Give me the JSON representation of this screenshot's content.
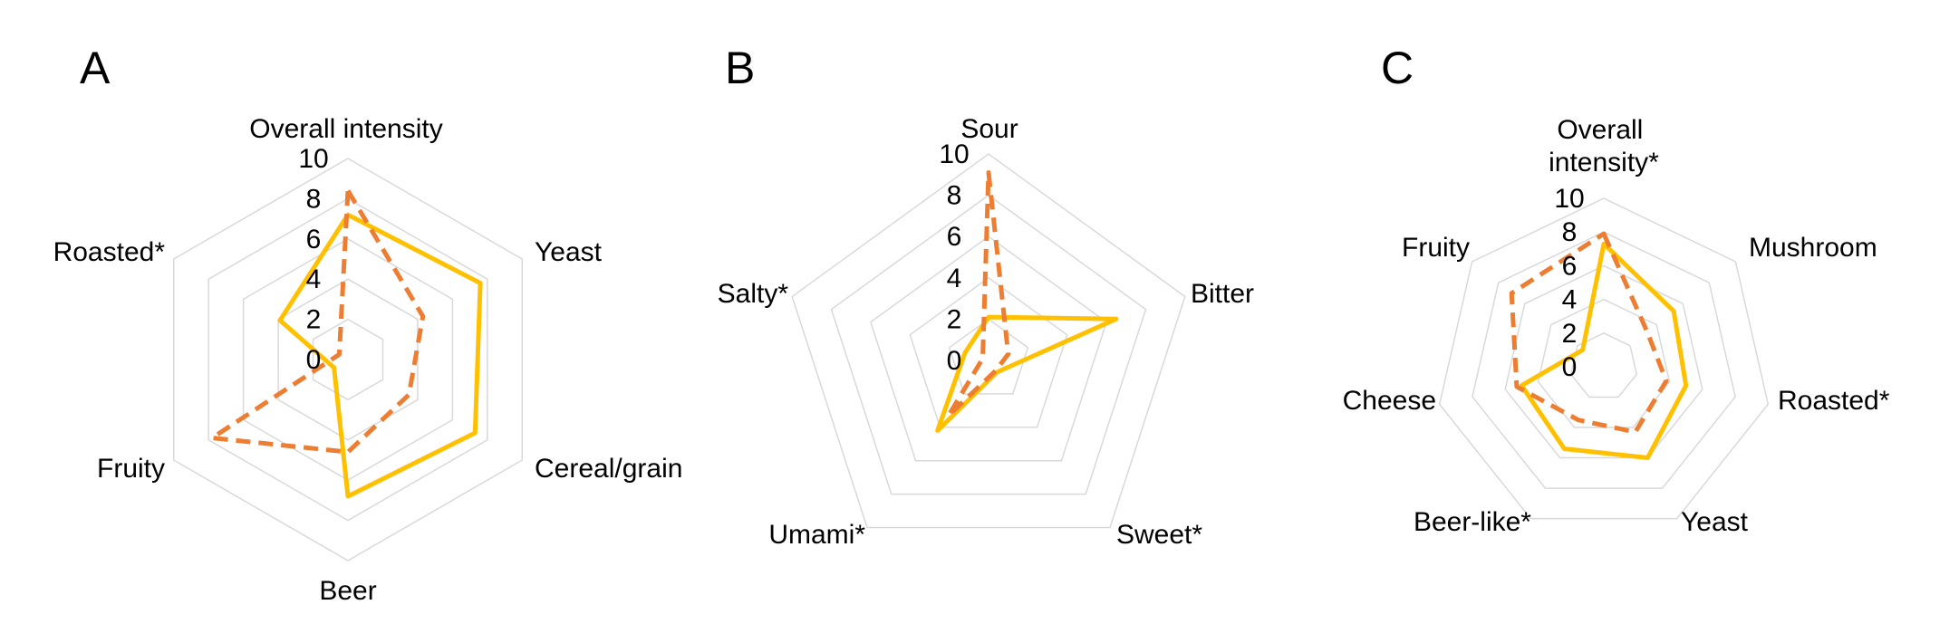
{
  "colors": {
    "solid_series": "#FFC000",
    "dashed_series": "#ED7D31",
    "grid": "#D9D9D9"
  },
  "chart_data": [
    {
      "type": "radar",
      "panel_label": "A",
      "axes": [
        "Overall intensity",
        "Yeast",
        "Cereal/grain",
        "Beer",
        "Fruity",
        "Roasted*"
      ],
      "rticks": [
        "0",
        "2",
        "4",
        "6",
        "8",
        "10"
      ],
      "rlim": [
        0,
        10
      ],
      "grid": true,
      "series": [
        {
          "style": "solid",
          "color": "#FFC000",
          "values": [
            7.2,
            7.6,
            7.3,
            6.8,
            0.8,
            3.9
          ]
        },
        {
          "style": "dashed",
          "color": "#ED7D31",
          "values": [
            8.4,
            4.3,
            3.5,
            4.6,
            7.8,
            0.5
          ]
        }
      ]
    },
    {
      "type": "radar",
      "panel_label": "B",
      "axes": [
        "Sour",
        "Bitter",
        "Sweet*",
        "Umami*",
        "Salty*"
      ],
      "rticks": [
        "0",
        "2",
        "4",
        "6",
        "8",
        "10"
      ],
      "rlim": [
        0,
        10
      ],
      "grid": true,
      "series": [
        {
          "style": "solid",
          "color": "#FFC000",
          "values": [
            2.1,
            6.5,
            0.7,
            4.2,
            1.2
          ]
        },
        {
          "style": "dashed",
          "color": "#ED7D31",
          "values": [
            9.1,
            1.0,
            0.6,
            3.3,
            0.3
          ]
        }
      ]
    },
    {
      "type": "radar",
      "panel_label": "C",
      "axes": [
        "Overall intensity*",
        "Mushroom",
        "Roasted*",
        "Yeast",
        "Beer-like*",
        "Cheese",
        "Fruity"
      ],
      "rticks": [
        "0",
        "2",
        "4",
        "6",
        "8",
        "10"
      ],
      "rlim": [
        0,
        10
      ],
      "grid": true,
      "series": [
        {
          "style": "solid",
          "color": "#FFC000",
          "values": [
            7.3,
            5.3,
            5.0,
            6.0,
            5.4,
            5.0,
            1.6
          ]
        },
        {
          "style": "dashed",
          "color": "#ED7D31",
          "values": [
            7.9,
            3.3,
            3.8,
            4.3,
            3.5,
            5.3,
            7.0
          ]
        }
      ]
    }
  ]
}
